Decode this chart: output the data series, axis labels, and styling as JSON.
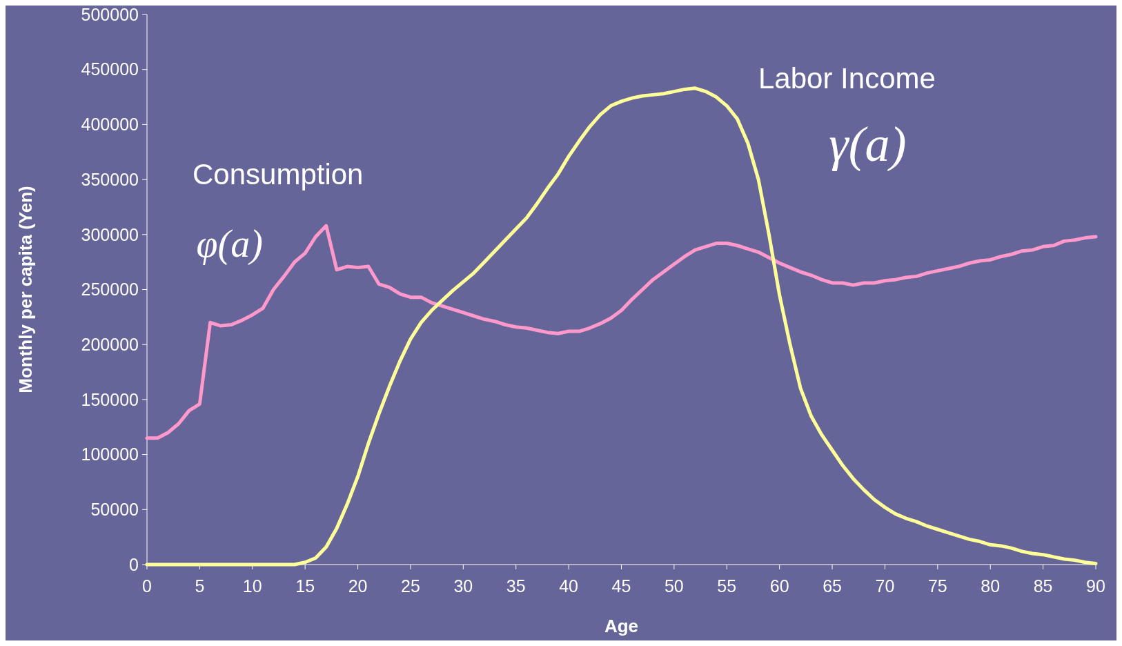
{
  "chart_data": {
    "type": "line",
    "xlabel": "Age",
    "ylabel": "Monthly per capita (Yen)",
    "x": [
      0,
      1,
      2,
      3,
      4,
      5,
      6,
      7,
      8,
      9,
      10,
      11,
      12,
      13,
      14,
      15,
      16,
      17,
      18,
      19,
      20,
      21,
      22,
      23,
      24,
      25,
      26,
      27,
      28,
      29,
      30,
      31,
      32,
      33,
      34,
      35,
      36,
      37,
      38,
      39,
      40,
      41,
      42,
      43,
      44,
      45,
      46,
      47,
      48,
      49,
      50,
      51,
      52,
      53,
      54,
      55,
      56,
      57,
      58,
      59,
      60,
      61,
      62,
      63,
      64,
      65,
      66,
      67,
      68,
      69,
      70,
      71,
      72,
      73,
      74,
      75,
      76,
      77,
      78,
      79,
      80,
      81,
      82,
      83,
      84,
      85,
      86,
      87,
      88,
      89,
      90
    ],
    "series": [
      {
        "name": "Consumption",
        "color": "#ff99cc",
        "values": [
          115000,
          115000,
          120000,
          128000,
          140000,
          146000,
          220000,
          217000,
          218000,
          222000,
          227000,
          233000,
          250000,
          262000,
          275000,
          283000,
          298000,
          308000,
          268000,
          271000,
          270000,
          271000,
          255000,
          252000,
          246000,
          243000,
          243000,
          238000,
          235000,
          232000,
          229000,
          226000,
          223000,
          221000,
          218000,
          216000,
          215000,
          213000,
          211000,
          210000,
          212000,
          212000,
          215000,
          219000,
          224000,
          231000,
          241000,
          250000,
          259000,
          266000,
          273000,
          280000,
          286000,
          289000,
          292000,
          292000,
          290000,
          287000,
          284000,
          279000,
          274000,
          270000,
          266000,
          263000,
          259000,
          256000,
          256000,
          254000,
          256000,
          256000,
          258000,
          259000,
          261000,
          262000,
          265000,
          267000,
          269000,
          271000,
          274000,
          276000,
          277000,
          280000,
          282000,
          285000,
          286000,
          289000,
          290000,
          294000,
          295000,
          297000,
          298000
        ]
      },
      {
        "name": "Labor Income",
        "color": "#ffff99",
        "values": [
          0,
          0,
          0,
          0,
          0,
          0,
          0,
          0,
          0,
          0,
          0,
          0,
          0,
          0,
          0,
          2000,
          6000,
          16000,
          33000,
          55000,
          80000,
          110000,
          137000,
          162000,
          185000,
          205000,
          220000,
          231000,
          240000,
          249000,
          257000,
          265000,
          275000,
          285000,
          295000,
          305000,
          315000,
          328000,
          342000,
          355000,
          371000,
          385000,
          398000,
          409000,
          417000,
          421000,
          424000,
          426000,
          427000,
          428000,
          430000,
          432000,
          433000,
          430000,
          425000,
          417000,
          405000,
          383000,
          350000,
          300000,
          245000,
          200000,
          160000,
          135000,
          118000,
          104000,
          90000,
          78000,
          68000,
          59000,
          52000,
          46000,
          42000,
          39000,
          35000,
          32000,
          29000,
          26000,
          23000,
          21000,
          18000,
          17000,
          15000,
          12000,
          10000,
          9000,
          7000,
          5000,
          4000,
          2000,
          1000
        ]
      }
    ],
    "annotations": [
      "φ(a)",
      "γ(a)"
    ],
    "xlim": [
      0,
      90
    ],
    "xticks": [
      0,
      5,
      10,
      15,
      20,
      25,
      30,
      35,
      40,
      45,
      50,
      55,
      60,
      65,
      70,
      75,
      80,
      85,
      90
    ],
    "ylim": [
      0,
      500000
    ],
    "yticks": [
      0,
      50000,
      100000,
      150000,
      200000,
      250000,
      300000,
      350000,
      400000,
      450000,
      500000
    ],
    "grid": false,
    "marker": "none",
    "line_style": "solid"
  }
}
